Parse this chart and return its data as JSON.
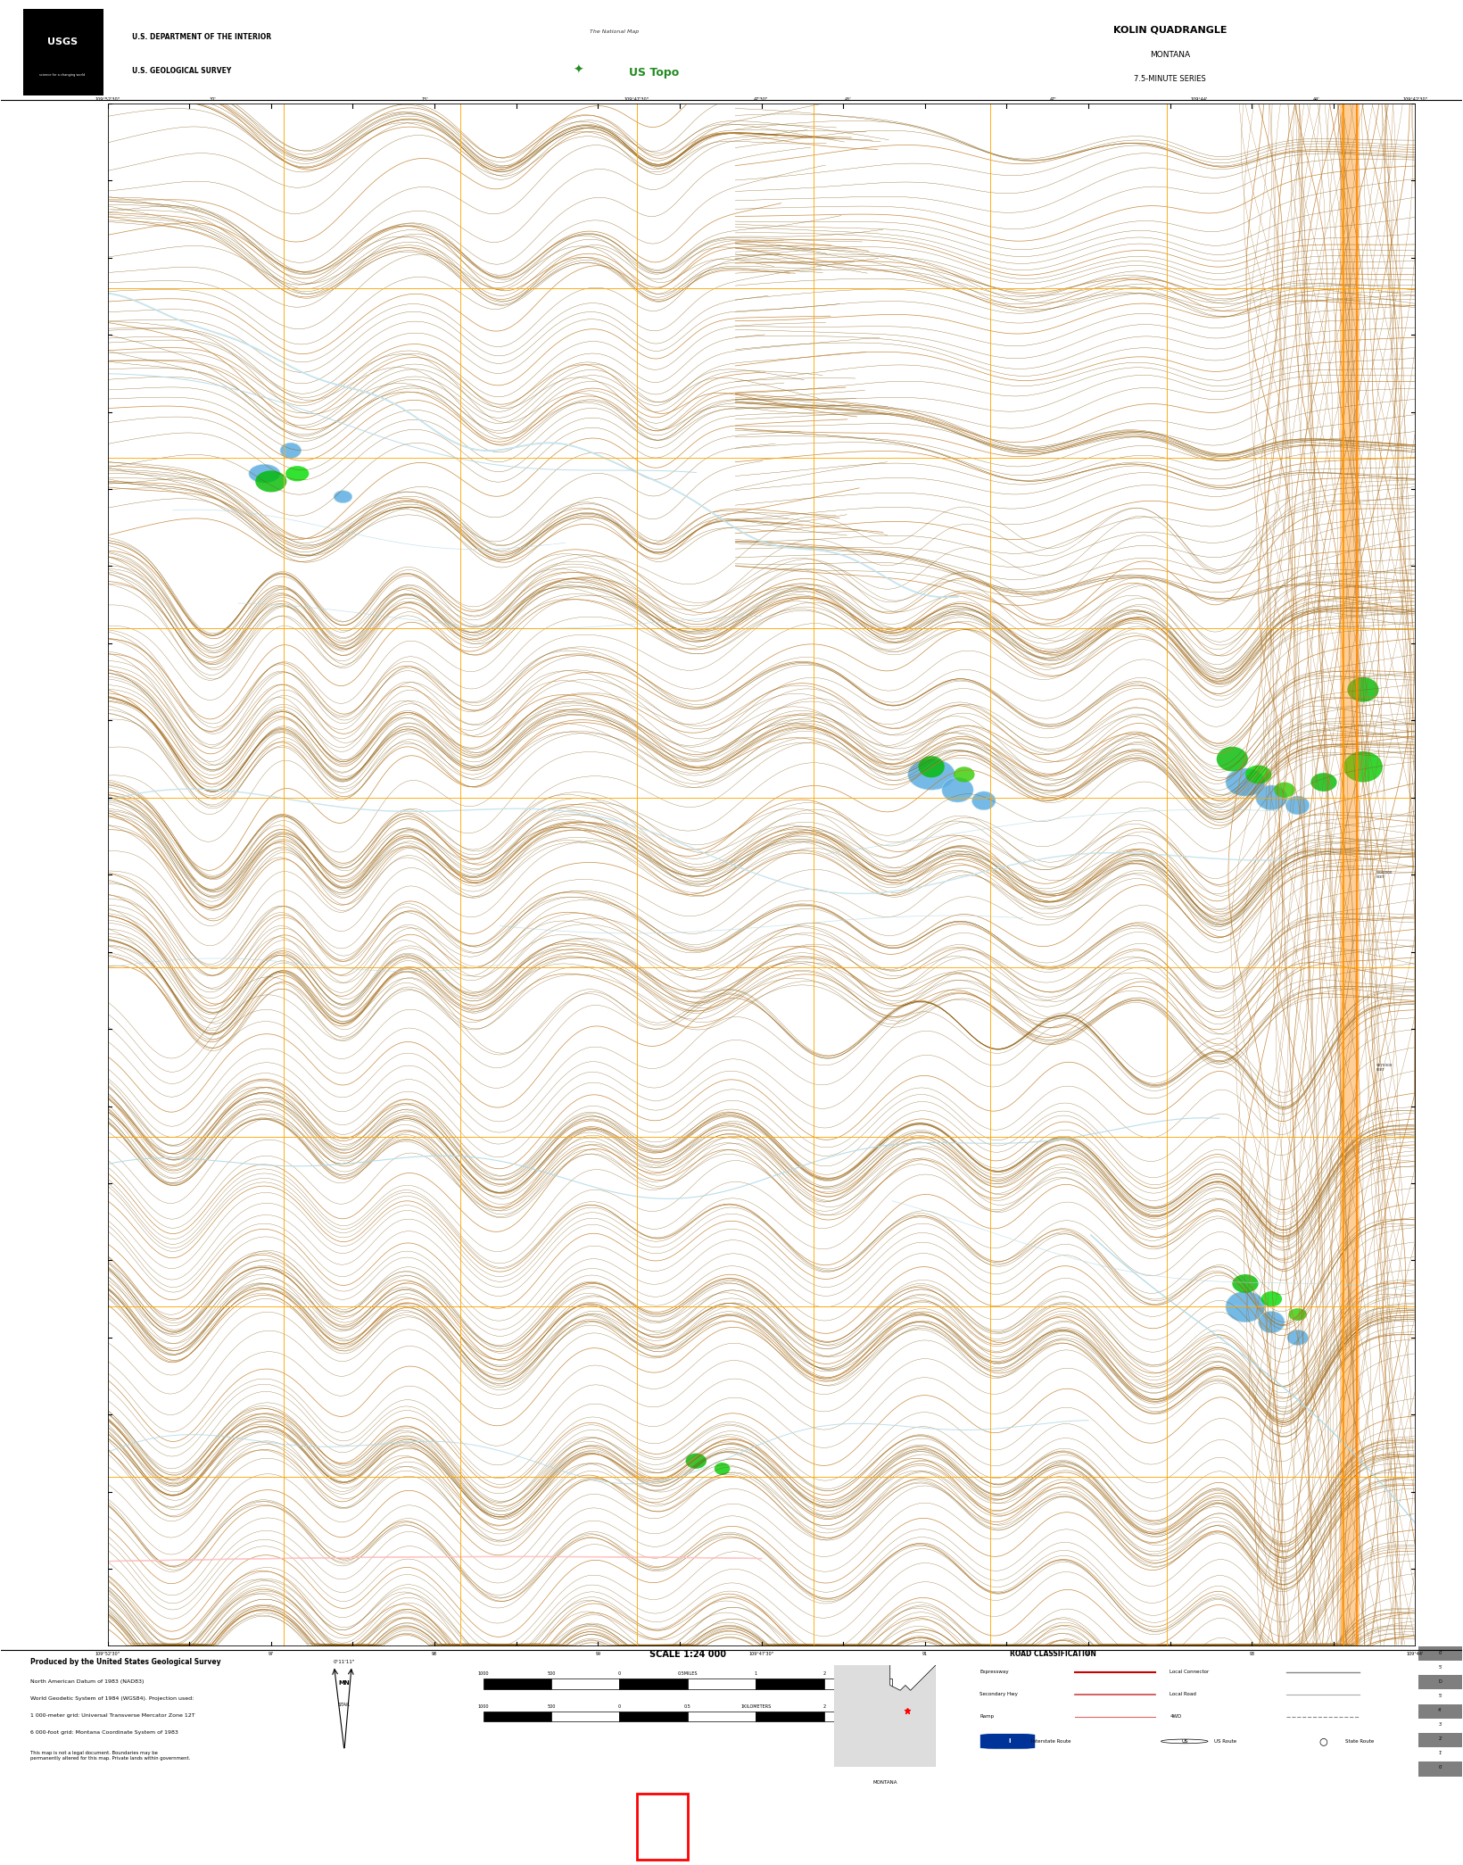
{
  "title": "KOLIN QUADRANGLE",
  "subtitle1": "MONTANA",
  "subtitle2": "7.5-MINUTE SERIES",
  "agency_line1": "U.S. DEPARTMENT OF THE INTERIOR",
  "agency_line2": "U.S. GEOLOGICAL SURVEY",
  "scale_text": "SCALE 1:24 000",
  "produced_by": "Produced by the United States Geological Survey",
  "map_bg_color": "#000000",
  "outer_bg_color": "#ffffff",
  "bottom_bar_color": "#000000",
  "header_bg": "#ffffff",
  "topo_color1": "#7B5000",
  "topo_color2": "#A06820",
  "topo_index_color": "#C08030",
  "water_color": "#ADD8E6",
  "water_fill": "#006080",
  "grid_color": "#FFA500",
  "green_color": "#00CC00",
  "green2_color": "#AAFF00",
  "road_white": "#ffffff",
  "road_pink": "#FFAAAA",
  "red_sq_color": "#FF0000",
  "map_l": 0.073,
  "map_r": 0.968,
  "map_b": 0.117,
  "map_t": 0.945,
  "header_b": 0.945,
  "header_t": 1.0,
  "footer_b": 0.047,
  "footer_t": 0.117,
  "black_bar_b": 0.0,
  "black_bar_t": 0.047
}
